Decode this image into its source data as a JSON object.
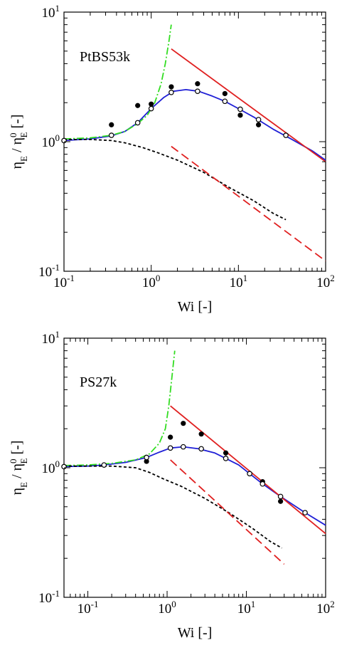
{
  "chart_data": [
    {
      "type": "line",
      "annotation": "PtBS53k",
      "xlabel": "Wi [-]",
      "ylabel_main": "η",
      "ylabel_sub1": "E",
      "ylabel_mid": " / η",
      "ylabel_sup": "0",
      "ylabel_sub2": "E",
      "ylabel_tail": " [-]",
      "xscale": "log",
      "yscale": "log",
      "xlim": [
        0.1,
        100
      ],
      "ylim": [
        0.1,
        10
      ],
      "xticks": [
        {
          "base": "10",
          "exp": "-1"
        },
        {
          "base": "10",
          "exp": "0"
        },
        {
          "base": "10",
          "exp": "1"
        },
        {
          "base": "10",
          "exp": "2"
        }
      ],
      "yticks": [
        {
          "base": "10",
          "exp": "-1"
        },
        {
          "base": "10",
          "exp": "0"
        },
        {
          "base": "10",
          "exp": "1"
        }
      ],
      "grid": false,
      "series": [
        {
          "style": "solid",
          "color": "#1f1fd6",
          "points": [
            [
              0.1,
              1.02
            ],
            [
              0.2,
              1.05
            ],
            [
              0.35,
              1.11
            ],
            [
              0.5,
              1.2
            ],
            [
              0.7,
              1.4
            ],
            [
              1.0,
              1.8
            ],
            [
              1.4,
              2.2
            ],
            [
              1.8,
              2.45
            ],
            [
              2.5,
              2.52
            ],
            [
              3.5,
              2.45
            ],
            [
              5,
              2.25
            ],
            [
              7,
              2.05
            ],
            [
              10,
              1.8
            ],
            [
              15,
              1.55
            ],
            [
              25,
              1.25
            ],
            [
              40,
              1.05
            ],
            [
              70,
              0.85
            ],
            [
              100,
              0.72
            ]
          ]
        },
        {
          "style": "dash-dot",
          "color": "#33dd22",
          "points": [
            [
              0.1,
              1.05
            ],
            [
              0.2,
              1.07
            ],
            [
              0.35,
              1.12
            ],
            [
              0.5,
              1.2
            ],
            [
              0.7,
              1.38
            ],
            [
              0.9,
              1.6
            ],
            [
              1.1,
              2.0
            ],
            [
              1.3,
              2.8
            ],
            [
              1.45,
              4.0
            ],
            [
              1.6,
              6.0
            ],
            [
              1.7,
              8.0
            ]
          ]
        },
        {
          "style": "dashed",
          "color": "#000000",
          "points": [
            [
              0.1,
              1.04
            ],
            [
              0.2,
              1.04
            ],
            [
              0.35,
              1.02
            ],
            [
              0.5,
              0.98
            ],
            [
              0.8,
              0.9
            ],
            [
              1.2,
              0.82
            ],
            [
              2,
              0.72
            ],
            [
              4,
              0.58
            ],
            [
              8,
              0.44
            ],
            [
              15,
              0.35
            ],
            [
              25,
              0.28
            ],
            [
              35,
              0.25
            ]
          ]
        },
        {
          "style": "solid",
          "color": "#e02020",
          "points": [
            [
              1.7,
              5.2
            ],
            [
              100,
              0.7
            ]
          ]
        },
        {
          "style": "long-dash",
          "color": "#e02020",
          "points": [
            [
              1.7,
              0.92
            ],
            [
              100,
              0.12
            ]
          ]
        }
      ],
      "points_open": [
        [
          0.1,
          1.02
        ],
        [
          0.35,
          1.12
        ],
        [
          0.7,
          1.4
        ],
        [
          1.0,
          1.8
        ],
        [
          1.7,
          2.4
        ],
        [
          3.4,
          2.45
        ],
        [
          7,
          2.05
        ],
        [
          10.5,
          1.78
        ],
        [
          17,
          1.48
        ],
        [
          35,
          1.12
        ]
      ],
      "points_filled": [
        [
          0.35,
          1.35
        ],
        [
          0.7,
          1.9
        ],
        [
          1.0,
          1.95
        ],
        [
          1.7,
          2.65
        ],
        [
          3.4,
          2.8
        ],
        [
          7,
          2.35
        ],
        [
          10.5,
          1.6
        ],
        [
          17,
          1.35
        ]
      ]
    },
    {
      "type": "line",
      "annotation": "PS27k",
      "xlabel": "Wi [-]",
      "ylabel_main": "η",
      "ylabel_sub1": "E",
      "ylabel_mid": " / η",
      "ylabel_sup": "0",
      "ylabel_sub2": "E",
      "ylabel_tail": " [-]",
      "xscale": "log",
      "yscale": "log",
      "xlim": [
        0.05,
        100
      ],
      "ylim": [
        0.1,
        10
      ],
      "xticks": [
        {
          "base": "10",
          "exp": "-1"
        },
        {
          "base": "10",
          "exp": "0"
        },
        {
          "base": "10",
          "exp": "1"
        },
        {
          "base": "10",
          "exp": "2"
        }
      ],
      "yticks": [
        {
          "base": "10",
          "exp": "-1"
        },
        {
          "base": "10",
          "exp": "0"
        },
        {
          "base": "10",
          "exp": "1"
        }
      ],
      "grid": false,
      "series": [
        {
          "style": "solid",
          "color": "#1f1fd6",
          "points": [
            [
              0.05,
              1.02
            ],
            [
              0.1,
              1.03
            ],
            [
              0.16,
              1.05
            ],
            [
              0.3,
              1.1
            ],
            [
              0.55,
              1.2
            ],
            [
              0.8,
              1.32
            ],
            [
              1.1,
              1.42
            ],
            [
              1.6,
              1.45
            ],
            [
              2.5,
              1.4
            ],
            [
              4,
              1.3
            ],
            [
              5.5,
              1.18
            ],
            [
              8,
              1.05
            ],
            [
              11,
              0.9
            ],
            [
              16,
              0.75
            ],
            [
              27,
              0.6
            ],
            [
              55,
              0.45
            ],
            [
              100,
              0.36
            ]
          ]
        },
        {
          "style": "dash-dot",
          "color": "#33dd22",
          "points": [
            [
              0.05,
              1.04
            ],
            [
              0.1,
              1.05
            ],
            [
              0.2,
              1.08
            ],
            [
              0.4,
              1.15
            ],
            [
              0.6,
              1.28
            ],
            [
              0.8,
              1.55
            ],
            [
              0.95,
              2.0
            ],
            [
              1.05,
              3.0
            ],
            [
              1.15,
              5.0
            ],
            [
              1.25,
              8.0
            ]
          ]
        },
        {
          "style": "dashed",
          "color": "#000000",
          "points": [
            [
              0.05,
              1.03
            ],
            [
              0.1,
              1.03
            ],
            [
              0.2,
              1.03
            ],
            [
              0.4,
              1.0
            ],
            [
              0.6,
              0.92
            ],
            [
              0.9,
              0.82
            ],
            [
              1.5,
              0.72
            ],
            [
              3,
              0.58
            ],
            [
              6,
              0.45
            ],
            [
              12,
              0.34
            ],
            [
              20,
              0.27
            ],
            [
              28,
              0.24
            ]
          ]
        },
        {
          "style": "solid",
          "color": "#e02020",
          "points": [
            [
              1.1,
              3.0
            ],
            [
              100,
              0.31
            ]
          ]
        },
        {
          "style": "long-dash",
          "color": "#e02020",
          "points": [
            [
              1.1,
              1.15
            ],
            [
              30,
              0.18
            ]
          ]
        }
      ],
      "points_open": [
        [
          0.05,
          1.02
        ],
        [
          0.16,
          1.05
        ],
        [
          0.55,
          1.2
        ],
        [
          1.1,
          1.42
        ],
        [
          1.6,
          1.45
        ],
        [
          2.7,
          1.4
        ],
        [
          5.5,
          1.18
        ],
        [
          11,
          0.9
        ],
        [
          16,
          0.75
        ],
        [
          27,
          0.6
        ],
        [
          55,
          0.45
        ]
      ],
      "points_filled": [
        [
          0.55,
          1.12
        ],
        [
          1.1,
          1.72
        ],
        [
          1.6,
          2.2
        ],
        [
          2.7,
          1.82
        ],
        [
          5.5,
          1.3
        ],
        [
          16,
          0.78
        ],
        [
          27,
          0.55
        ]
      ]
    }
  ]
}
